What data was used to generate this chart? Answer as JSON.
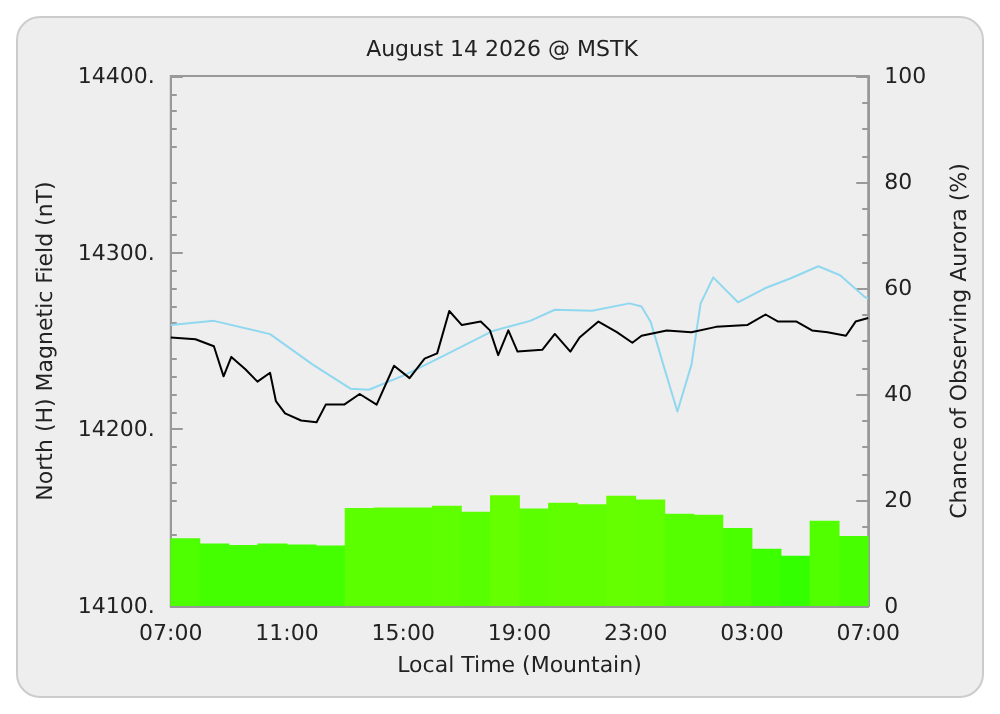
{
  "chart_data": {
    "type": "line",
    "title": "August 14 2026 @ MSTK",
    "xlabel": "Local Time (Mountain)",
    "ylabel": "North (H) Magnetic Field (nT)",
    "y2label": "Chance of Observing Aurora (%)",
    "xlim": [
      "2026-08-14T07:00",
      "2026-08-15T07:00"
    ],
    "xticks": [
      {
        "value": "2026-08-14T07:00",
        "label": "07:00"
      },
      {
        "value": "2026-08-14T11:00",
        "label": "11:00"
      },
      {
        "value": "2026-08-14T15:00",
        "label": "15:00"
      },
      {
        "value": "2026-08-14T19:00",
        "label": "19:00"
      },
      {
        "value": "2026-08-14T23:00",
        "label": "23:00"
      },
      {
        "value": "2026-08-15T03:00",
        "label": "03:00"
      },
      {
        "value": "2026-08-15T07:00",
        "label": "07:00"
      }
    ],
    "ylim": [
      14100,
      14400
    ],
    "yticks": [
      {
        "value": 14100,
        "label": "14100."
      },
      {
        "value": 14200,
        "label": "14200."
      },
      {
        "value": 14300,
        "label": "14300."
      },
      {
        "value": 14400,
        "label": "14400."
      }
    ],
    "y2lim": [
      0,
      100
    ],
    "y2ticks": [
      0,
      20,
      40,
      60,
      80,
      100
    ],
    "grid": false,
    "marker": "none",
    "line_style": "solid",
    "series": [
      {
        "type": "bar",
        "axis": "y2",
        "x": [
          "2026-08-14T07:30",
          "2026-08-14T08:30",
          "2026-08-14T09:30",
          "2026-08-14T10:30",
          "2026-08-14T11:30",
          "2026-08-14T12:30",
          "2026-08-14T13:30",
          "2026-08-14T14:30",
          "2026-08-14T15:30",
          "2026-08-14T16:30",
          "2026-08-14T17:30",
          "2026-08-14T18:30",
          "2026-08-14T19:30",
          "2026-08-14T20:30",
          "2026-08-14T21:30",
          "2026-08-14T22:30",
          "2026-08-14T23:30",
          "2026-08-15T00:30",
          "2026-08-15T01:30",
          "2026-08-15T02:30",
          "2026-08-15T03:30",
          "2026-08-15T04:30",
          "2026-08-15T05:30",
          "2026-08-15T06:30"
        ],
        "values": [
          12.8,
          11.8,
          11.5,
          11.8,
          11.6,
          11.4,
          18.5,
          18.6,
          18.6,
          18.9,
          17.8,
          20.9,
          18.4,
          19.5,
          19.2,
          20.8,
          20.1,
          17.4,
          17.2,
          14.7,
          10.8,
          9.5,
          16.1,
          13.2
        ],
        "colors": [
          "#4dff00",
          "#44ff00",
          "#44ff00",
          "#44ff00",
          "#44ff00",
          "#44ff00",
          "#5cff00",
          "#5cff00",
          "#5cff00",
          "#5eff00",
          "#58ff00",
          "#66ff00",
          "#5cff00",
          "#60ff00",
          "#5fff00",
          "#65ff00",
          "#62ff00",
          "#56ff00",
          "#55ff00",
          "#4aff00",
          "#3cff00",
          "#33ff00",
          "#52ff00",
          "#48ff00"
        ]
      },
      {
        "type": "line",
        "axis": "y2",
        "color": "#8fd8f0",
        "x": [
          "2026-08-14T07:00",
          "2026-08-14T08:29",
          "2026-08-14T10:25",
          "2026-08-14T11:54",
          "2026-08-14T13:11",
          "2026-08-14T13:49",
          "2026-08-14T15:06",
          "2026-08-14T16:23",
          "2026-08-14T18:05",
          "2026-08-14T19:22",
          "2026-08-14T20:13",
          "2026-08-14T21:30",
          "2026-08-14T22:47",
          "2026-08-14T23:12",
          "2026-08-14T23:31",
          "2026-08-14T23:57",
          "2026-08-15T00:26",
          "2026-08-15T00:55",
          "2026-08-15T01:14",
          "2026-08-15T01:40",
          "2026-08-15T02:31",
          "2026-08-15T03:28",
          "2026-08-15T04:19",
          "2026-08-15T05:17",
          "2026-08-15T06:02",
          "2026-08-15T06:53",
          "2026-08-15T07:00"
        ],
        "values": [
          53.0,
          53.8,
          51.3,
          45.5,
          41.0,
          40.8,
          43.7,
          47.2,
          51.9,
          53.8,
          55.9,
          55.7,
          57.1,
          56.5,
          53.6,
          45.5,
          36.7,
          45.5,
          57.1,
          62.0,
          57.3,
          60.0,
          61.8,
          64.1,
          62.4,
          58.3,
          58.0
        ]
      },
      {
        "axis": "y",
        "color": "#000000",
        "x": [
          "2026-08-14T07:00",
          "2026-08-14T07:51",
          "2026-08-14T08:29",
          "2026-08-14T08:49",
          "2026-08-14T09:05",
          "2026-08-14T09:34",
          "2026-08-14T09:59",
          "2026-08-14T10:25",
          "2026-08-14T10:37",
          "2026-08-14T10:56",
          "2026-08-14T11:29",
          "2026-08-14T12:01",
          "2026-08-14T12:20",
          "2026-08-14T12:58",
          "2026-08-14T13:30",
          "2026-08-14T14:05",
          "2026-08-14T14:41",
          "2026-08-14T15:13",
          "2026-08-14T15:44",
          "2026-08-14T16:10",
          "2026-08-14T16:35",
          "2026-08-14T17:01",
          "2026-08-14T17:40",
          "2026-08-14T17:59",
          "2026-08-14T18:16",
          "2026-08-14T18:37",
          "2026-08-14T18:56",
          "2026-08-14T19:47",
          "2026-08-14T20:13",
          "2026-08-14T20:45",
          "2026-08-14T21:04",
          "2026-08-14T21:43",
          "2026-08-14T22:21",
          "2026-08-14T22:53",
          "2026-08-14T23:12",
          "2026-08-15T00:04",
          "2026-08-15T00:55",
          "2026-08-15T01:46",
          "2026-08-15T02:50",
          "2026-08-15T03:28",
          "2026-08-15T03:54",
          "2026-08-15T04:32",
          "2026-08-15T05:04",
          "2026-08-15T05:36",
          "2026-08-15T06:14",
          "2026-08-15T06:34",
          "2026-08-15T07:00"
        ],
        "values": [
          14252,
          14251,
          14247,
          14230,
          14241,
          14234,
          14227,
          14232,
          14216,
          14209,
          14205,
          14204,
          14214,
          14214,
          14220,
          14214,
          14236,
          14229,
          14240,
          14243,
          14267,
          14259,
          14261,
          14256,
          14242,
          14256,
          14244,
          14245,
          14254,
          14244,
          14252,
          14261,
          14255,
          14249,
          14253,
          14256,
          14255,
          14258,
          14259,
          14265,
          14261,
          14261,
          14256,
          14255,
          14253,
          14261,
          14263
        ]
      }
    ]
  }
}
